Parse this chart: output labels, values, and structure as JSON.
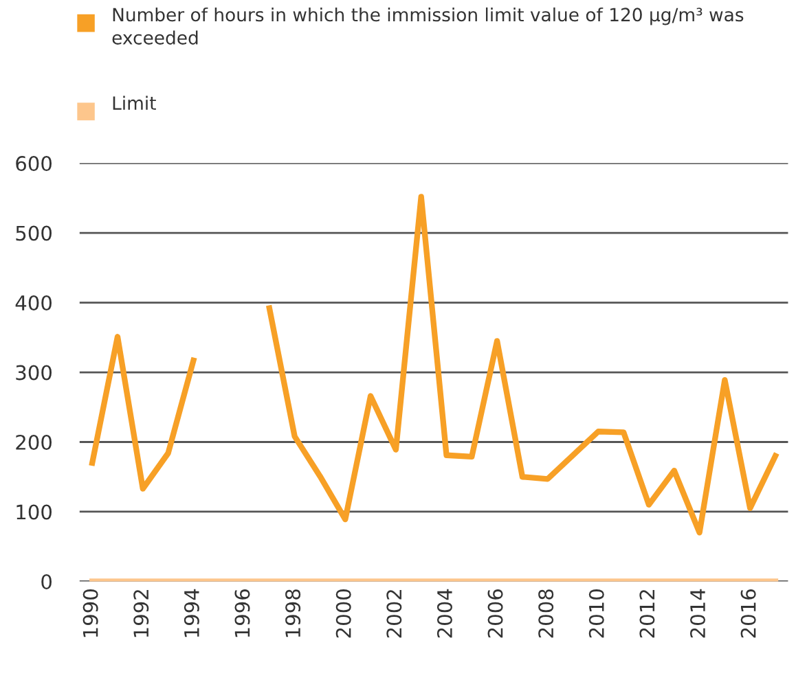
{
  "chart_data": {
    "type": "line",
    "categories": [
      "1990",
      null,
      "1992",
      null,
      "1994",
      null,
      "1996",
      null,
      "1998",
      null,
      "2000",
      null,
      "2002",
      null,
      "2004",
      null,
      "2006",
      null,
      "2008",
      null,
      "2010",
      null,
      "2012",
      null,
      "2014",
      null,
      "2016",
      null
    ],
    "series": [
      {
        "name": "Number of hours in which the immission limit value of 120 µg/m³ was exceeded",
        "color": "#f7a026",
        "values": [
          170,
          351,
          133,
          184,
          317,
          null,
          null,
          392,
          208,
          151,
          89,
          266,
          189,
          552,
          181,
          179,
          345,
          150,
          147,
          181,
          215,
          214,
          110,
          159,
          70,
          289,
          105,
          180
        ]
      },
      {
        "name": "Limit",
        "color": "#fdc68c",
        "values": [
          0,
          0,
          0,
          0,
          0,
          0,
          0,
          0,
          0,
          0,
          0,
          0,
          0,
          0,
          0,
          0,
          0,
          0,
          0,
          0,
          0,
          0,
          0,
          0,
          0,
          0,
          0,
          0
        ]
      }
    ],
    "ylim": [
      0,
      600
    ],
    "yticks": [
      0,
      100,
      200,
      300,
      400,
      500,
      600
    ],
    "grid": "y",
    "legend": "top left",
    "marker": "none",
    "line_style": "solid"
  }
}
